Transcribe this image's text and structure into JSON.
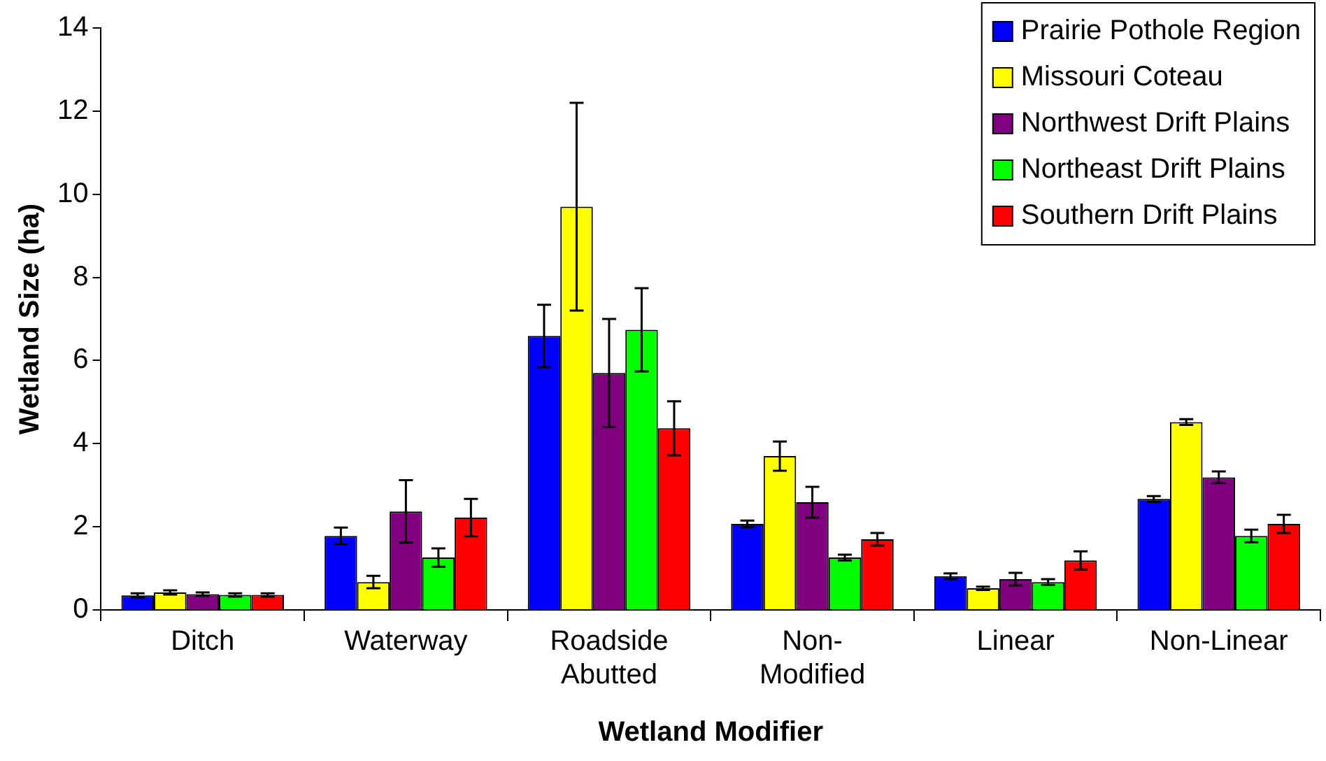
{
  "chart_data": {
    "type": "bar",
    "xlabel": "Wetland Modifier",
    "ylabel": "Wetland Size (ha)",
    "categories": [
      "Ditch",
      "Waterway",
      "Roadside\nAbutted",
      "Non-\nModified",
      "Linear",
      "Non-Linear"
    ],
    "series": [
      {
        "name": "Prairie Pothole Region",
        "color": "#0000ff",
        "values": [
          0.35,
          1.78,
          6.59,
          2.07,
          0.81,
          2.67
        ],
        "errors": [
          0.05,
          0.2,
          0.75,
          0.08,
          0.07,
          0.07
        ]
      },
      {
        "name": "Missouri Coteau",
        "color": "#ffff00",
        "values": [
          0.42,
          0.67,
          9.7,
          3.7,
          0.52,
          4.52
        ],
        "errors": [
          0.05,
          0.15,
          2.5,
          0.35,
          0.04,
          0.07
        ]
      },
      {
        "name": "Northwest Drift Plains",
        "color": "#800080",
        "values": [
          0.38,
          2.37,
          5.7,
          2.59,
          0.74,
          3.19
        ],
        "errors": [
          0.04,
          0.75,
          1.3,
          0.37,
          0.15,
          0.14
        ]
      },
      {
        "name": "Northeast Drift Plains",
        "color": "#00ff00",
        "values": [
          0.36,
          1.26,
          6.74,
          1.26,
          0.67,
          1.78
        ],
        "errors": [
          0.04,
          0.22,
          1.0,
          0.07,
          0.07,
          0.15
        ]
      },
      {
        "name": "Southern Drift Plains",
        "color": "#ff0000",
        "values": [
          0.36,
          2.22,
          4.37,
          1.7,
          1.19,
          2.07
        ],
        "errors": [
          0.04,
          0.45,
          0.65,
          0.15,
          0.22,
          0.22
        ]
      }
    ],
    "ylim": [
      0,
      14
    ],
    "yticks": [
      0,
      2,
      4,
      6,
      8,
      10,
      12,
      14
    ],
    "grid": false,
    "legend": "top right"
  }
}
